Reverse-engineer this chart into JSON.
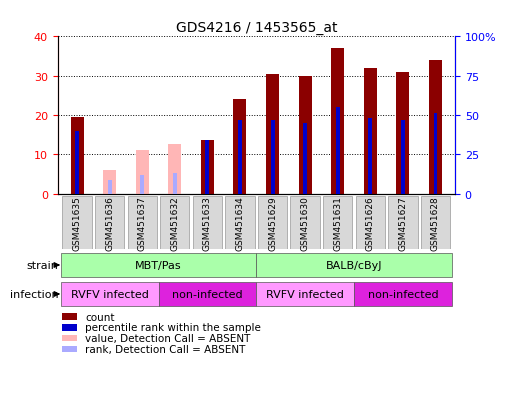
{
  "title": "GDS4216 / 1453565_at",
  "samples": [
    "GSM451635",
    "GSM451636",
    "GSM451637",
    "GSM451632",
    "GSM451633",
    "GSM451634",
    "GSM451629",
    "GSM451630",
    "GSM451631",
    "GSM451626",
    "GSM451627",
    "GSM451628"
  ],
  "count_values": [
    19.5,
    null,
    null,
    null,
    13.5,
    24.0,
    30.5,
    30.0,
    37.0,
    32.0,
    31.0,
    34.0
  ],
  "absent_value_values": [
    null,
    6.0,
    11.0,
    12.5,
    null,
    null,
    null,
    null,
    null,
    null,
    null,
    null
  ],
  "percentile_rank": [
    40,
    null,
    null,
    null,
    34,
    47,
    47,
    45,
    55,
    48,
    47,
    51
  ],
  "absent_rank_values": [
    null,
    8.5,
    11.5,
    13.0,
    null,
    null,
    null,
    null,
    null,
    null,
    null,
    null
  ],
  "ylim_left": [
    0,
    40
  ],
  "ylim_right": [
    0,
    100
  ],
  "left_ticks": [
    0,
    10,
    20,
    30,
    40
  ],
  "right_ticks": [
    0,
    25,
    50,
    75,
    100
  ],
  "bar_color_present": "#8b0000",
  "bar_color_absent": "#ffb6b6",
  "rank_color_present": "#0000cc",
  "rank_color_absent": "#aaaaff",
  "bar_width": 0.4,
  "rank_bar_width": 0.12,
  "strain_groups": [
    {
      "label": "MBT/Pas",
      "start": 0,
      "end": 6,
      "color": "#aaffaa"
    },
    {
      "label": "BALB/cByJ",
      "start": 6,
      "end": 12,
      "color": "#aaffaa"
    }
  ],
  "infection_groups": [
    {
      "label": "RVFV infected",
      "start": 0,
      "end": 3,
      "color": "#ff99ff"
    },
    {
      "label": "non-infected",
      "start": 3,
      "end": 6,
      "color": "#dd22dd"
    },
    {
      "label": "RVFV infected",
      "start": 6,
      "end": 9,
      "color": "#ff99ff"
    },
    {
      "label": "non-infected",
      "start": 9,
      "end": 12,
      "color": "#dd22dd"
    }
  ],
  "legend_items": [
    {
      "color": "#8b0000",
      "label": "count"
    },
    {
      "color": "#0000cc",
      "label": "percentile rank within the sample"
    },
    {
      "color": "#ffb6b6",
      "label": "value, Detection Call = ABSENT"
    },
    {
      "color": "#aaaaff",
      "label": "rank, Detection Call = ABSENT"
    }
  ]
}
